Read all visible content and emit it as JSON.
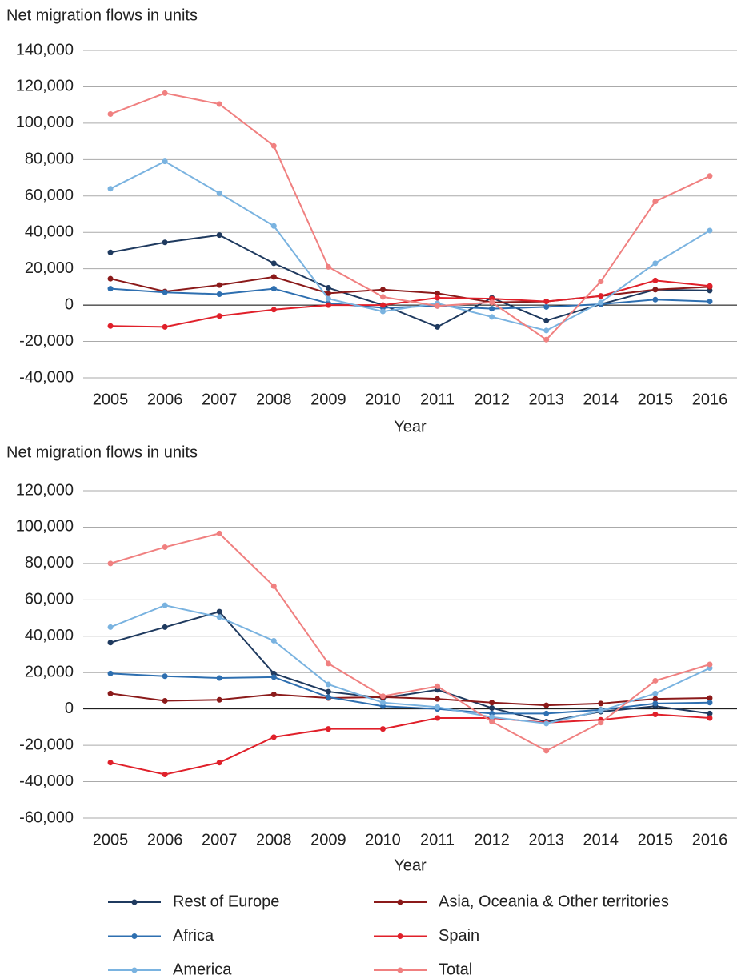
{
  "chart_data": [
    {
      "type": "line",
      "title": "Net migration flows in units",
      "x_label": "Year",
      "categories": [
        "2005",
        "2006",
        "2007",
        "2008",
        "2009",
        "2010",
        "2011",
        "2012",
        "2013",
        "2014",
        "2015",
        "2016"
      ],
      "ylim": [
        -40000,
        140000
      ],
      "yticks": [
        {
          "value": -40000,
          "label": "-40,000"
        },
        {
          "value": -20000,
          "label": "-20,000"
        },
        0,
        {
          "value": 20000,
          "label": "20,000"
        },
        {
          "value": 40000,
          "label": "40,000"
        },
        {
          "value": 60000,
          "label": "60,000"
        },
        {
          "value": 80000,
          "label": "80,000"
        },
        {
          "value": 100000,
          "label": "100,000"
        },
        {
          "value": 120000,
          "label": "120,000"
        },
        {
          "value": 140000,
          "label": "140,000"
        }
      ],
      "grid": true,
      "series": [
        {
          "name": "Rest of Europe",
          "color": "#1f3a5f",
          "values": [
            29000,
            34500,
            38500,
            23000,
            9500,
            0,
            -12000,
            4000,
            -8500,
            500,
            8500,
            8000
          ]
        },
        {
          "name": "Asia, Oceania & Other territories",
          "color": "#8b1a1a",
          "values": [
            14500,
            7500,
            11000,
            15500,
            6500,
            8500,
            6500,
            1500,
            2000,
            5000,
            8500,
            10000
          ]
        },
        {
          "name": "Africa",
          "color": "#2e6fb0",
          "values": [
            9000,
            7000,
            6000,
            9000,
            1000,
            -1500,
            -500,
            -2000,
            -1000,
            500,
            3000,
            2000
          ]
        },
        {
          "name": "Spain",
          "color": "#e0202a",
          "values": [
            -11500,
            -12000,
            -6000,
            -2500,
            0,
            0,
            4000,
            3500,
            2000,
            5000,
            13500,
            10500
          ]
        },
        {
          "name": "America",
          "color": "#7ab3e0",
          "values": [
            64000,
            79000,
            61500,
            43500,
            3500,
            -3500,
            1000,
            -6500,
            -14000,
            1500,
            23000,
            41000
          ]
        },
        {
          "name": "Total",
          "color": "#f08080",
          "values": [
            105000,
            116500,
            110500,
            87500,
            21000,
            4500,
            -500,
            1500,
            -19000,
            13000,
            57000,
            71000
          ]
        }
      ]
    },
    {
      "type": "line",
      "title": "Net migration flows in units",
      "x_label": "Year",
      "categories": [
        "2005",
        "2006",
        "2007",
        "2008",
        "2009",
        "2010",
        "2011",
        "2012",
        "2013",
        "2014",
        "2015",
        "2016"
      ],
      "ylim": [
        -60000,
        120000
      ],
      "yticks": [
        {
          "value": -60000,
          "label": "-60,000"
        },
        {
          "value": -40000,
          "label": "-40,000"
        },
        {
          "value": -20000,
          "label": "-20,000"
        },
        0,
        {
          "value": 20000,
          "label": "20,000"
        },
        {
          "value": 40000,
          "label": "40,000"
        },
        {
          "value": 60000,
          "label": "60,000"
        },
        {
          "value": 80000,
          "label": "80,000"
        },
        {
          "value": 100000,
          "label": "100,000"
        },
        {
          "value": 120000,
          "label": "120,000"
        }
      ],
      "grid": true,
      "series": [
        {
          "color": "#1f3a5f",
          "values": [
            36500,
            45000,
            53500,
            19500,
            9500,
            6000,
            10500,
            500,
            -7000,
            -1500,
            1500,
            -2500
          ]
        },
        {
          "color": "#8b1a1a",
          "values": [
            8500,
            4500,
            5000,
            8000,
            6000,
            6500,
            5500,
            3500,
            2000,
            3000,
            5500,
            6000
          ]
        },
        {
          "color": "#2e6fb0",
          "values": [
            19500,
            18000,
            17000,
            17500,
            6500,
            1500,
            0,
            -2500,
            -2500,
            -500,
            3000,
            3500
          ]
        },
        {
          "color": "#e0202a",
          "values": [
            -29500,
            -36000,
            -29500,
            -15500,
            -11000,
            -11000,
            -5000,
            -5000,
            -7500,
            -6000,
            -3000,
            -5000
          ]
        },
        {
          "color": "#7ab3e0",
          "values": [
            45000,
            57000,
            50500,
            37500,
            13500,
            3500,
            1000,
            -4500,
            -8000,
            -1000,
            8500,
            22500
          ]
        },
        {
          "color": "#f08080",
          "values": [
            80000,
            89000,
            96500,
            67500,
            25000,
            7000,
            12500,
            -7000,
            -23000,
            -7500,
            15500,
            24500
          ]
        }
      ]
    }
  ]
}
